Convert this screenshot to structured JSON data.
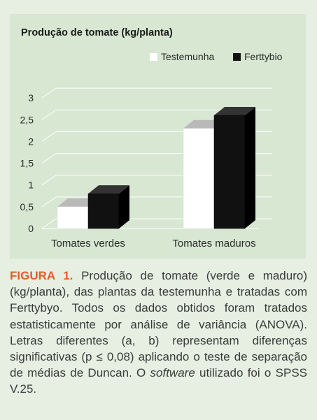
{
  "chart_data": {
    "type": "bar",
    "title": "Produção de tomate (kg/planta)",
    "categories": [
      "Tomates verdes",
      "Tomates maduros"
    ],
    "series": [
      {
        "name": "Testemunha",
        "values": [
          0.5,
          2.3
        ],
        "color": "#ffffff"
      },
      {
        "name": "Ferttybio",
        "values": [
          0.8,
          2.6
        ],
        "color": "#111111"
      }
    ],
    "y_ticks": [
      "0",
      "0,5",
      "1",
      "1,5",
      "2",
      "2,5",
      "3"
    ],
    "ylim": [
      0,
      3
    ],
    "grid": true,
    "style": "3d",
    "legend_position": "top-right"
  },
  "caption": {
    "label": "FIGURA 1.",
    "text_before": "Produção de tomate (verde e maduro) (kg/planta), das plantas da testemunha e tratadas com Ferttybyo. Todos os dados obtidos foram tratados estatisticamente por análise de variância (ANOVA). Letras diferentes (a, b) representam diferenças significativas (p ≤ 0,08) aplicando o teste de separação de médias de Duncan. O ",
    "italic": "software",
    "text_after": " utilizado foi o SPSS V.25."
  },
  "colors": {
    "accent": "#e65b2b",
    "panel": "#d7e7d2",
    "background": "#e6efe2"
  }
}
